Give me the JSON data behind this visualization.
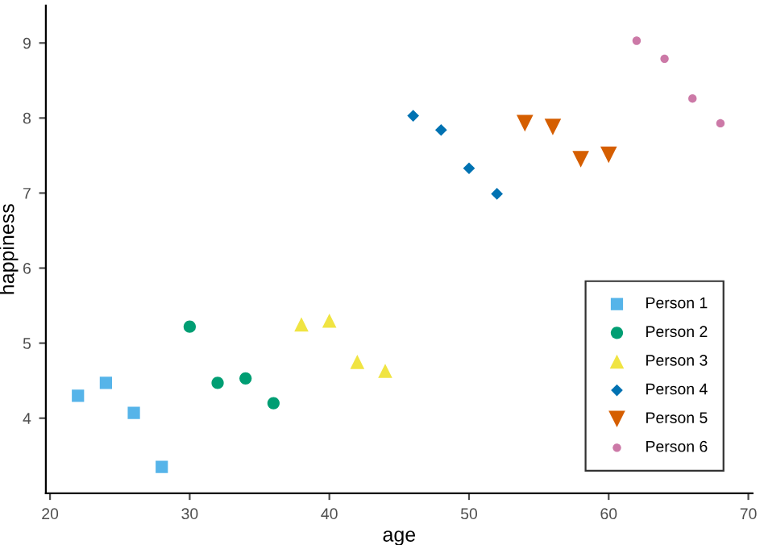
{
  "chart_data": {
    "type": "scatter",
    "xlabel": "age",
    "ylabel": "happiness",
    "xlim": [
      19.7,
      70.3
    ],
    "ylim": [
      3.0,
      9.5
    ],
    "xticks": [
      20,
      30,
      40,
      50,
      60,
      70
    ],
    "yticks": [
      4,
      5,
      6,
      7,
      8,
      9
    ],
    "grid": false,
    "legend": "bottom right",
    "series": [
      {
        "name": "Person 1",
        "color": "#56b4e9",
        "marker": "square",
        "x": [
          22,
          24,
          26,
          28
        ],
        "values": [
          4.3,
          4.47,
          4.07,
          3.35
        ]
      },
      {
        "name": "Person 2",
        "color": "#009e73",
        "marker": "circle",
        "x": [
          30,
          32,
          34,
          36
        ],
        "values": [
          5.22,
          4.47,
          4.53,
          4.2
        ]
      },
      {
        "name": "Person 3",
        "color": "#f0e442",
        "marker": "triangle",
        "x": [
          38,
          40,
          42,
          44
        ],
        "values": [
          5.25,
          5.3,
          4.75,
          4.63
        ]
      },
      {
        "name": "Person 4",
        "color": "#0072b2",
        "marker": "diamond",
        "x": [
          46,
          48,
          50,
          52
        ],
        "values": [
          8.03,
          7.84,
          7.33,
          6.99
        ]
      },
      {
        "name": "Person 5",
        "color": "#d55e00",
        "marker": "triangle_down",
        "x": [
          54,
          56,
          58,
          60
        ],
        "values": [
          7.93,
          7.88,
          7.45,
          7.51
        ]
      },
      {
        "name": "Person 6",
        "color": "#cc79a7",
        "marker": "circle_small",
        "x": [
          62,
          64,
          66,
          68
        ],
        "values": [
          9.03,
          8.79,
          8.26,
          7.93
        ]
      }
    ]
  }
}
